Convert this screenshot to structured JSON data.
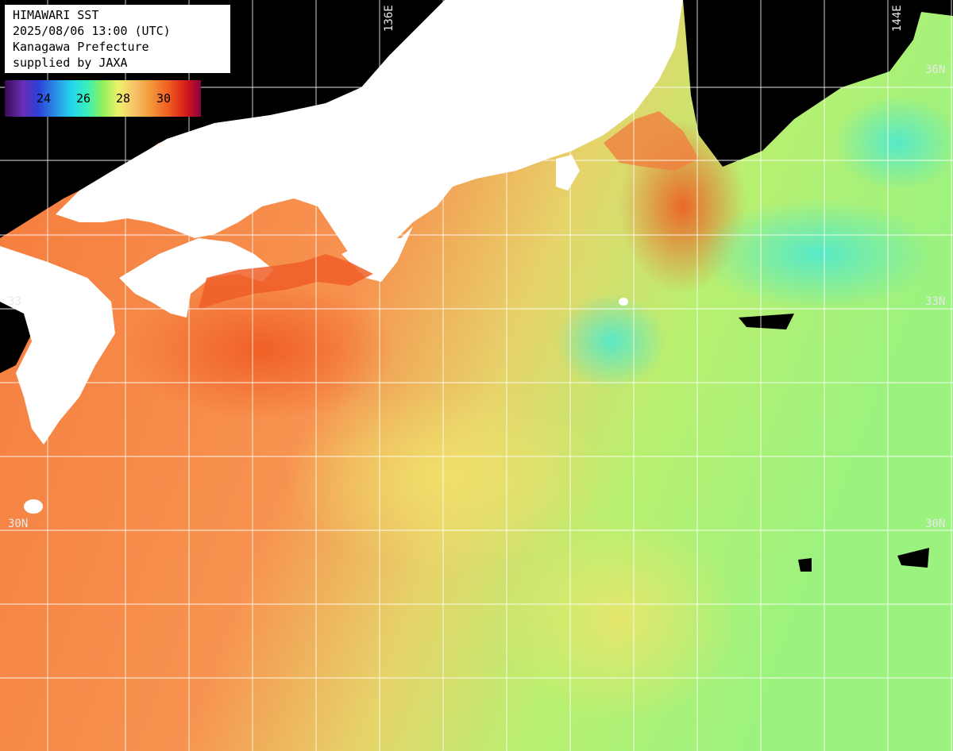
{
  "header": {
    "line1": "HIMAWARI SST",
    "line2": "2025/08/06 13:00 (UTC)",
    "line3": "Kanagawa Prefecture",
    "line4": "supplied by JAXA"
  },
  "colorbar": {
    "ticks": [
      "24",
      "26",
      "28",
      "30"
    ],
    "colors": [
      "#3a0a52",
      "#6a2fb5",
      "#2c3fd8",
      "#24d6ee",
      "#8ff05a",
      "#eef06a",
      "#f29a3c",
      "#ef5a20",
      "#d11818",
      "#8a0044"
    ]
  },
  "grid_labels": {
    "lon_136": "136E",
    "lon_144": "144E",
    "lat_33_left": "33",
    "lat_33_right": "33N",
    "lat_30_left": "30N",
    "lat_30_right": "30N",
    "lat_36_right": "36N"
  },
  "colors": {
    "land": "#ffffff",
    "no_data": "#000000",
    "warm_sea": "#f58a45",
    "cool_sea": "#b8f070",
    "grid": "#ffffff"
  }
}
